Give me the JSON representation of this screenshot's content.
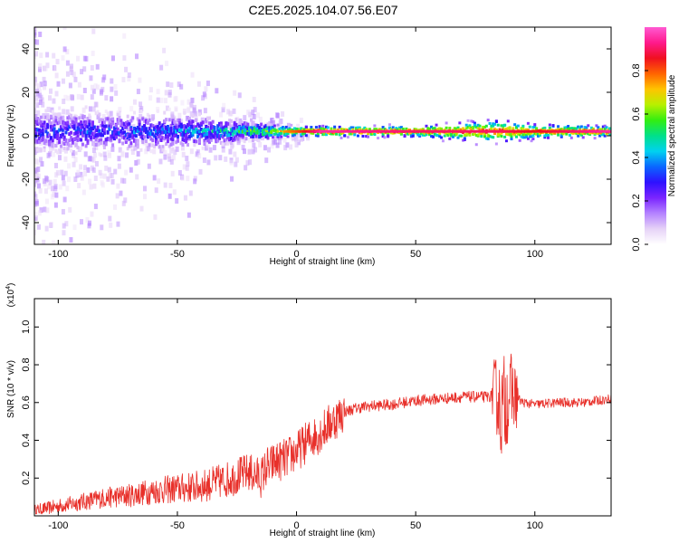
{
  "title": "C2E5.2025.104.07.56.E07",
  "colors": {
    "signal": "#e8302a",
    "axis": "#000000",
    "colormap": [
      "#ffffff",
      "#e6d2f7",
      "#b482ff",
      "#7a24ff",
      "#2e11ff",
      "#0a66ff",
      "#00d2f0",
      "#00e08a",
      "#33ee11",
      "#b8f000",
      "#ffc400",
      "#ff6400",
      "#f01020",
      "#ff1a8c",
      "#ff5ad2"
    ]
  },
  "chart_data": [
    {
      "type": "heatmap",
      "xlabel": "Height of straight line (km)",
      "ylabel": "Frequency (Hz)",
      "xlim": [
        -110,
        132
      ],
      "ylim": [
        -50,
        50
      ],
      "xticks": [
        -100,
        -50,
        0,
        50,
        100
      ],
      "yticks": [
        -40,
        -20,
        0,
        20,
        40
      ],
      "colorbar": {
        "label": "Normalized spectral amplitude",
        "range": [
          0,
          1
        ],
        "ticks": [
          0.0,
          0.2,
          0.4,
          0.6,
          0.8
        ]
      },
      "ridge": {
        "frequency_hz": 2,
        "description_points": [
          {
            "x": -100,
            "peak_amplitude": 0.35,
            "spread_hz": 8
          },
          {
            "x": -50,
            "peak_amplitude": 0.4,
            "spread_hz": 7
          },
          {
            "x": -30,
            "peak_amplitude": 0.5,
            "spread_hz": 5
          },
          {
            "x": -15,
            "peak_amplitude": 0.65,
            "spread_hz": 3
          },
          {
            "x": 0,
            "peak_amplitude": 0.8,
            "spread_hz": 2
          },
          {
            "x": 10,
            "peak_amplitude": 0.95,
            "spread_hz": 2
          },
          {
            "x": 50,
            "peak_amplitude": 0.9,
            "spread_hz": 2
          },
          {
            "x": 85,
            "peak_amplitude": 0.9,
            "spread_hz": 5
          },
          {
            "x": 100,
            "peak_amplitude": 0.85,
            "spread_hz": 3
          },
          {
            "x": 130,
            "peak_amplitude": 0.95,
            "spread_hz": 2
          }
        ]
      }
    },
    {
      "type": "line",
      "xlabel": "Height of straight line (km)",
      "ylabel": "SNR (10 * v/v)",
      "y_multiplier": "(x10",
      "y_multiplier_exp": "4",
      "y_multiplier_close": ")",
      "xlim": [
        -110,
        132
      ],
      "ylim": [
        0.0,
        1.15
      ],
      "xticks": [
        -100,
        -50,
        0,
        50,
        100
      ],
      "yticks": [
        0.2,
        0.4,
        0.6,
        0.8,
        1.0
      ],
      "series": [
        {
          "x": [
            -110,
            -100,
            -90,
            -80,
            -70,
            -60,
            -50,
            -40,
            -30,
            -20,
            -15,
            -10,
            -5,
            0,
            5,
            10,
            15,
            20,
            25,
            30,
            40,
            50,
            60,
            70,
            80,
            84,
            86,
            88,
            90,
            92,
            95,
            100,
            110,
            120,
            132
          ],
          "y": [
            0.02,
            0.04,
            0.06,
            0.08,
            0.09,
            0.11,
            0.12,
            0.13,
            0.16,
            0.2,
            0.17,
            0.28,
            0.3,
            0.34,
            0.4,
            0.44,
            0.5,
            0.55,
            0.57,
            0.58,
            0.59,
            0.61,
            0.62,
            0.63,
            0.63,
            0.64,
            0.55,
            0.62,
            0.65,
            0.63,
            0.6,
            0.59,
            0.6,
            0.6,
            0.62
          ]
        }
      ]
    }
  ]
}
